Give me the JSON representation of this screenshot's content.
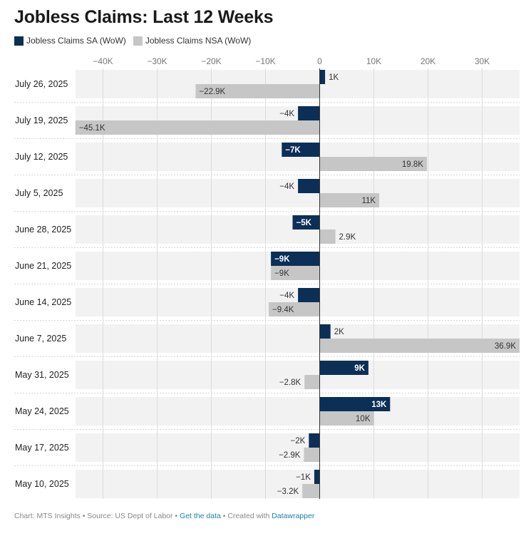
{
  "title": "Jobless Claims: Last 12 Weeks",
  "colors": {
    "sa": "#0b2f57",
    "nsa": "#c6c6c6",
    "row_bg": "#f2f2f2"
  },
  "legend": [
    {
      "label": "Jobless Claims SA (WoW)",
      "color": "#0b2f57"
    },
    {
      "label": "Jobless Claims NSA (WoW)",
      "color": "#c6c6c6"
    }
  ],
  "footer": {
    "prefix": "Chart: MTS Insights • Source: US Dept of Labor • ",
    "link1": "Get the data",
    "middle": " • Created with ",
    "link2": "Datawrapper"
  },
  "chart_data": {
    "type": "bar",
    "orientation": "horizontal",
    "title": "Jobless Claims: Last 12 Weeks",
    "xlim": [
      -45100,
      36900
    ],
    "x_ticks": [
      -40000,
      -30000,
      -20000,
      -10000,
      0,
      10000,
      20000,
      30000
    ],
    "x_tick_labels": [
      "−40K",
      "−30K",
      "−20K",
      "−10K",
      "0",
      "10K",
      "20K",
      "30K"
    ],
    "grid": true,
    "legend_position": "top-left",
    "categories": [
      "July 26, 2025",
      "July 19, 2025",
      "July 12, 2025",
      "July 5, 2025",
      "June 28, 2025",
      "June 21, 2025",
      "June 14, 2025",
      "June 7, 2025",
      "May 31, 2025",
      "May 24, 2025",
      "May 17, 2025",
      "May 10, 2025"
    ],
    "series": [
      {
        "name": "Jobless Claims SA (WoW)",
        "values": [
          1000,
          -4000,
          -7000,
          -4000,
          -5000,
          -9000,
          -4000,
          2000,
          9000,
          13000,
          -2000,
          -1000
        ],
        "labels": [
          "1K",
          "−4K",
          "−7K",
          "−4K",
          "−5K",
          "−9K",
          "−4K",
          "2K",
          "9K",
          "13K",
          "−2K",
          "−1K"
        ]
      },
      {
        "name": "Jobless Claims NSA (WoW)",
        "values": [
          -22900,
          -45100,
          19800,
          11000,
          2900,
          -9000,
          -9400,
          36900,
          -2800,
          10000,
          -2900,
          -3200
        ],
        "labels": [
          "−22.9K",
          "−45.1K",
          "19.8K",
          "11K",
          "2.9K",
          "−9K",
          "−9.4K",
          "36.9K",
          "−2.8K",
          "10K",
          "−2.9K",
          "−3.2K"
        ]
      }
    ]
  }
}
